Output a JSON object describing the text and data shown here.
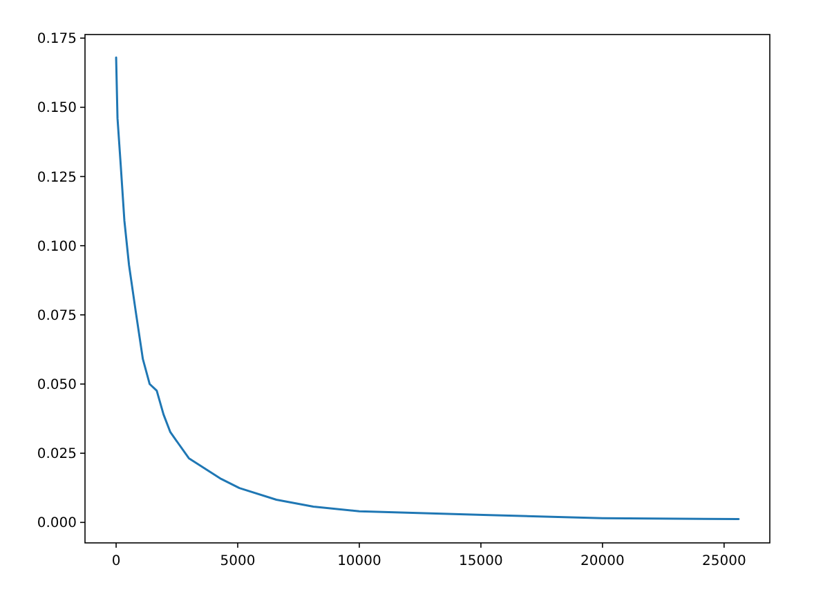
{
  "chart_data": {
    "type": "line",
    "x": [
      0,
      57,
      190,
      340,
      530,
      810,
      1100,
      1380,
      1670,
      1950,
      2230,
      2990,
      4320,
      5070,
      6590,
      8110,
      10000,
      15100,
      20000,
      25600
    ],
    "series": [
      {
        "color": "#1f77b4",
        "values": [
          0.168,
          0.146,
          0.129,
          0.109,
          0.093,
          0.076,
          0.059,
          0.05,
          0.0476,
          0.039,
          0.0326,
          0.0232,
          0.0157,
          0.0124,
          0.0082,
          0.0057,
          0.004,
          0.0027,
          0.0015,
          0.0012
        ]
      }
    ],
    "xlim": [
      -1280,
      26880
    ],
    "xticks": [
      0,
      5000,
      10000,
      15000,
      20000,
      25000
    ],
    "ylim": [
      -0.0074,
      0.1763
    ],
    "yticks": [
      {
        "value": 0,
        "label": "0.000"
      },
      {
        "value": 0.025,
        "label": "0.025"
      },
      {
        "value": 0.05,
        "label": "0.050"
      },
      {
        "value": 0.075,
        "label": "0.075"
      },
      {
        "value": 0.1,
        "label": "0.100"
      },
      {
        "value": 0.125,
        "label": "0.125"
      },
      {
        "value": 0.15,
        "label": "0.150"
      },
      {
        "value": 0.175,
        "label": "0.175"
      }
    ]
  }
}
